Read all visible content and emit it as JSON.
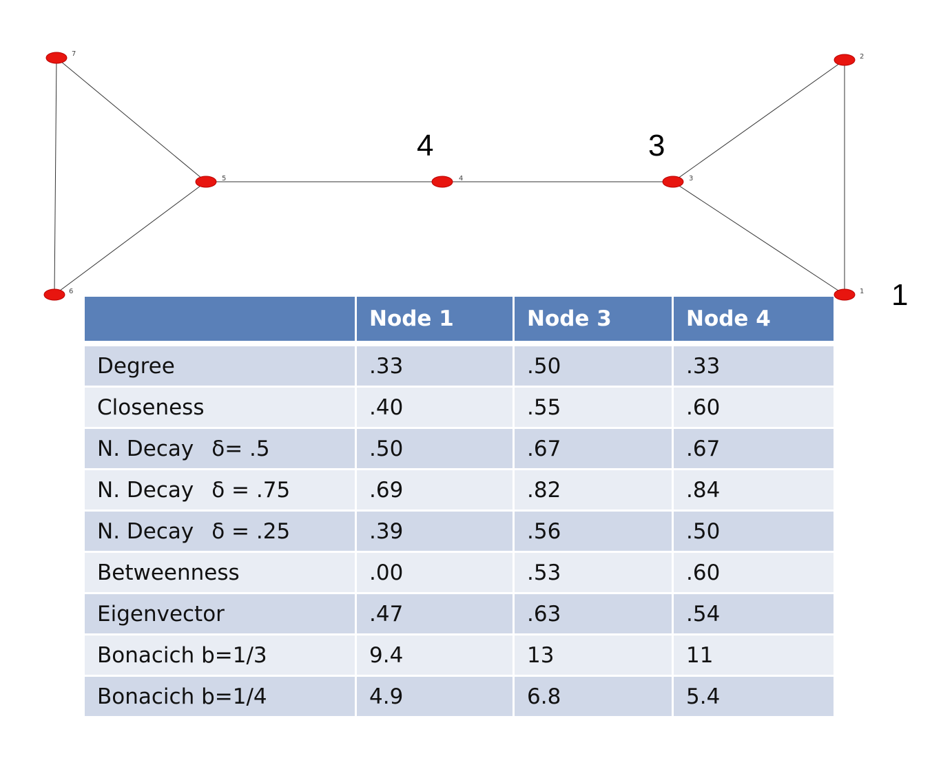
{
  "graph": {
    "nodes": [
      {
        "id": "1",
        "label": "1"
      },
      {
        "id": "2",
        "label": "2"
      },
      {
        "id": "3",
        "label": "3"
      },
      {
        "id": "4",
        "label": "4"
      },
      {
        "id": "5",
        "label": "5"
      },
      {
        "id": "6",
        "label": "6"
      },
      {
        "id": "7",
        "label": "7"
      }
    ],
    "edges": [
      [
        "7",
        "6"
      ],
      [
        "7",
        "5"
      ],
      [
        "6",
        "5"
      ],
      [
        "5",
        "4"
      ],
      [
        "4",
        "3"
      ],
      [
        "3",
        "2"
      ],
      [
        "3",
        "1"
      ],
      [
        "2",
        "1"
      ]
    ],
    "callouts": {
      "node4": "4",
      "node3": "3",
      "node1": "1"
    },
    "node_color": "#e8150f"
  },
  "table": {
    "headers": [
      "",
      "Node 1",
      "Node 3",
      "Node 4"
    ],
    "rows": [
      {
        "metric": "Degree",
        "param": "",
        "values": [
          ".33",
          ".50",
          ".33"
        ]
      },
      {
        "metric": "Closeness",
        "param": "",
        "values": [
          ".40",
          ".55",
          ".60"
        ]
      },
      {
        "metric": "N. Decay",
        "param": "δ= .5",
        "values": [
          ".50",
          ".67",
          ".67"
        ]
      },
      {
        "metric": "N. Decay",
        "param": "δ = .75",
        "values": [
          ".69",
          ".82",
          ".84"
        ]
      },
      {
        "metric": "N. Decay",
        "param": "δ = .25",
        "values": [
          ".39",
          ".56",
          ".50"
        ]
      },
      {
        "metric": "Betweenness",
        "param": "",
        "values": [
          ".00",
          ".53",
          ".60"
        ]
      },
      {
        "metric": "Eigenvector",
        "param": "",
        "values": [
          ".47",
          ".63",
          ".54"
        ]
      },
      {
        "metric": "Bonacich b=1/3",
        "param": "",
        "values": [
          "9.4",
          "13",
          "11"
        ]
      },
      {
        "metric": "Bonacich b=1/4",
        "param": "",
        "values": [
          "4.9",
          "6.8",
          "5.4"
        ]
      }
    ],
    "header_color": "#5a80b8",
    "row_color_odd": "#d0d8e8",
    "row_color_even": "#e9edf4"
  }
}
